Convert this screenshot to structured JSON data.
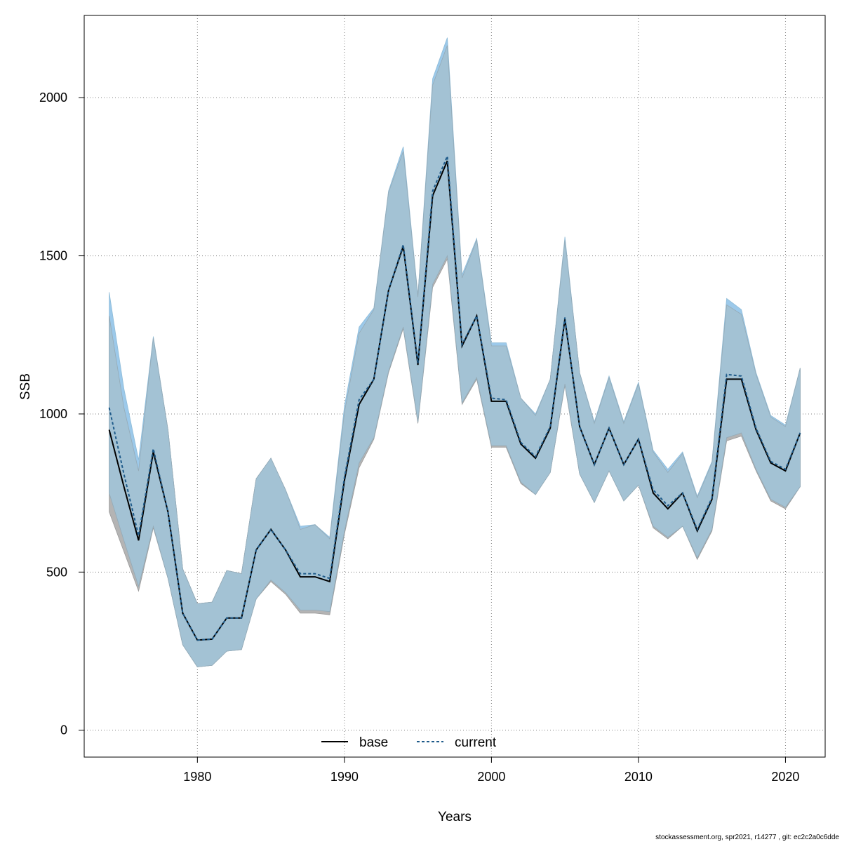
{
  "footer": {
    "text": "stockassessment.org, spr2021, r14277 , git: ec2c2a0c6dde"
  },
  "colors": {
    "base_band": "#b4b4b4",
    "current_band": "#9cc9ea",
    "overlap_band": "#a3c2d4",
    "base_line": "#000000",
    "current_line": "#1f5b8a",
    "grid": "#808080"
  },
  "chart_data": {
    "type": "line",
    "title": "",
    "xlabel": "Years",
    "ylabel": "SSB",
    "xlim": [
      1972.3,
      2022.7
    ],
    "ylim": [
      -85,
      2260
    ],
    "x_ticks": [
      1980,
      1990,
      2000,
      2010,
      2020
    ],
    "y_ticks": [
      0,
      500,
      1000,
      1500,
      2000
    ],
    "grid": true,
    "legend_position": "bottom",
    "x": [
      1974,
      1975,
      1976,
      1977,
      1978,
      1979,
      1980,
      1981,
      1982,
      1983,
      1984,
      1985,
      1986,
      1987,
      1988,
      1989,
      1990,
      1991,
      1992,
      1993,
      1994,
      1995,
      1996,
      1997,
      1998,
      1999,
      2000,
      2001,
      2002,
      2003,
      2004,
      2005,
      2006,
      2007,
      2008,
      2009,
      2010,
      2011,
      2012,
      2013,
      2014,
      2015,
      2016,
      2017,
      2018,
      2019,
      2020,
      2021
    ],
    "series": [
      {
        "name": "base",
        "line_style": "solid",
        "values": [
          950,
          770,
          600,
          880,
          690,
          370,
          285,
          288,
          355,
          355,
          570,
          635,
          570,
          485,
          485,
          470,
          790,
          1030,
          1110,
          1390,
          1530,
          1155,
          1690,
          1800,
          1215,
          1310,
          1040,
          1040,
          905,
          860,
          955,
          1300,
          960,
          840,
          955,
          840,
          920,
          750,
          700,
          750,
          630,
          730,
          1110,
          1110,
          950,
          845,
          820,
          940
        ],
        "lower": [
          690,
          565,
          440,
          640,
          480,
          270,
          200,
          205,
          250,
          255,
          415,
          470,
          430,
          370,
          370,
          365,
          620,
          830,
          920,
          1130,
          1270,
          970,
          1400,
          1490,
          1030,
          1110,
          895,
          895,
          780,
          745,
          815,
          1090,
          810,
          720,
          820,
          725,
          775,
          640,
          605,
          645,
          540,
          630,
          915,
          930,
          820,
          725,
          700,
          770
        ],
        "upper": [
          1310,
          1020,
          820,
          1240,
          950,
          510,
          400,
          405,
          505,
          495,
          795,
          860,
          760,
          635,
          650,
          605,
          1005,
          1255,
          1330,
          1700,
          1830,
          1370,
          2040,
          2165,
          1430,
          1550,
          1215,
          1215,
          1050,
          995,
          1110,
          1550,
          1130,
          970,
          1115,
          970,
          1095,
          880,
          815,
          875,
          735,
          845,
          1345,
          1315,
          1125,
          990,
          960,
          1145
        ]
      },
      {
        "name": "current",
        "line_style": "dashed",
        "values": [
          1020,
          810,
          615,
          890,
          690,
          370,
          285,
          288,
          355,
          355,
          570,
          635,
          570,
          495,
          495,
          480,
          800,
          1045,
          1110,
          1390,
          1535,
          1160,
          1705,
          1815,
          1220,
          1310,
          1050,
          1045,
          910,
          865,
          960,
          1305,
          960,
          840,
          955,
          840,
          920,
          760,
          710,
          750,
          635,
          735,
          1125,
          1120,
          955,
          850,
          825,
          940
        ],
        "lower": [
          750,
          600,
          455,
          645,
          480,
          270,
          200,
          205,
          250,
          255,
          415,
          475,
          435,
          380,
          380,
          375,
          630,
          845,
          925,
          1135,
          1275,
          975,
          1410,
          1500,
          1035,
          1115,
          900,
          900,
          785,
          745,
          815,
          1095,
          810,
          720,
          820,
          725,
          775,
          645,
          610,
          645,
          545,
          635,
          925,
          940,
          825,
          730,
          705,
          770
        ],
        "upper": [
          1385,
          1080,
          855,
          1245,
          950,
          510,
          400,
          405,
          505,
          495,
          795,
          860,
          760,
          645,
          650,
          610,
          1025,
          1275,
          1335,
          1705,
          1845,
          1375,
          2060,
          2190,
          1440,
          1555,
          1225,
          1225,
          1050,
          1000,
          1110,
          1560,
          1130,
          975,
          1120,
          975,
          1100,
          885,
          825,
          880,
          740,
          850,
          1365,
          1330,
          1130,
          995,
          965,
          1145
        ]
      }
    ]
  }
}
